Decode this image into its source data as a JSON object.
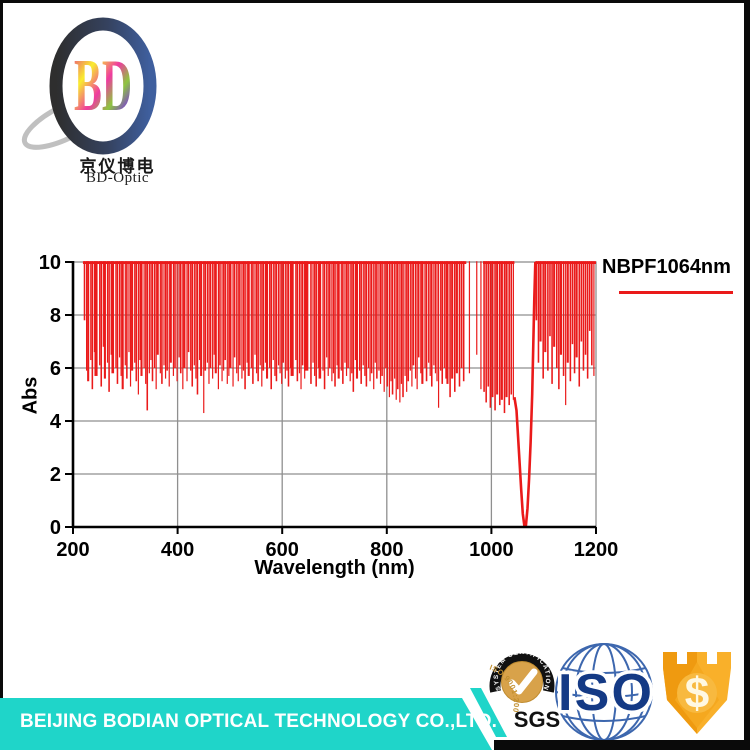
{
  "logo": {
    "monogram": "BD",
    "company_cn": "京仪博电",
    "company_short": "BD-Optic"
  },
  "chart": {
    "legend_label": "NBPF1064nm",
    "ylabel": "Abs",
    "xlabel": "Wavelength (nm)",
    "x_ticks": [
      "200",
      "400",
      "600",
      "800",
      "1000",
      "1200"
    ],
    "y_ticks": [
      "0",
      "2",
      "4",
      "6",
      "8",
      "10"
    ]
  },
  "chart_data": {
    "type": "line",
    "title": "",
    "series_name": "NBPF1064nm",
    "xlabel": "Wavelength (nm)",
    "ylabel": "Abs",
    "xlim": [
      200,
      1200
    ],
    "ylim": [
      0,
      10
    ],
    "x_tick_values": [
      200,
      400,
      600,
      800,
      1000,
      1200
    ],
    "y_tick_values": [
      0,
      2,
      4,
      6,
      8,
      10
    ],
    "grid": true,
    "legend_position": "right-top",
    "line_color": "#ea1a1a",
    "pattern": "Blocking band: absorbance pinned at 10 from ~220-1044 nm and ~1084-1200 nm with dense noisy downward spikes (typical minima 4.3-6.6); sparse region ~950-985 nm; deep smooth transmission notch centered at 1064 nm reaching Abs 0.",
    "notch_center_nm": 1064,
    "baseline_abs": 10,
    "baseline_segments": [
      [
        219,
        952
      ],
      [
        984,
        1044
      ],
      [
        1084,
        1200
      ]
    ],
    "notch_points": [
      [
        1044,
        4.9
      ],
      [
        1048,
        4.4
      ],
      [
        1051,
        3.4
      ],
      [
        1054,
        2.4
      ],
      [
        1057,
        1.4
      ],
      [
        1060,
        0.5
      ],
      [
        1063,
        0.05
      ],
      [
        1066,
        0.05
      ],
      [
        1069,
        0.7
      ],
      [
        1072,
        1.8
      ],
      [
        1075,
        3.2
      ],
      [
        1078,
        5.0
      ],
      [
        1080,
        6.8
      ],
      [
        1082,
        8.6
      ],
      [
        1084,
        10
      ]
    ],
    "spikes": [
      [
        222,
        7.8,
        3
      ],
      [
        226,
        5.9,
        2
      ],
      [
        229,
        5.5,
        4
      ],
      [
        234,
        6.3,
        2
      ],
      [
        237,
        5.2,
        3
      ],
      [
        241,
        6.6,
        2
      ],
      [
        244,
        5.7,
        6
      ],
      [
        251,
        6.1,
        2
      ],
      [
        254,
        5.3,
        3
      ],
      [
        258,
        6.8,
        2
      ],
      [
        261,
        5.6,
        4
      ],
      [
        266,
        6.2,
        2
      ],
      [
        269,
        5.1,
        3
      ],
      [
        273,
        6.5,
        2
      ],
      [
        276,
        5.8,
        5
      ],
      [
        282,
        6.0,
        2
      ],
      [
        285,
        5.4,
        3
      ],
      [
        289,
        6.4,
        2
      ],
      [
        292,
        5.7,
        2
      ],
      [
        295,
        5.2,
        4
      ],
      [
        300,
        6.1,
        2
      ],
      [
        303,
        5.6,
        3
      ],
      [
        307,
        6.6,
        2
      ],
      [
        310,
        5.3,
        2
      ],
      [
        313,
        5.9,
        4
      ],
      [
        318,
        6.2,
        2
      ],
      [
        321,
        5.5,
        3
      ],
      [
        325,
        5.0,
        2
      ],
      [
        328,
        6.3,
        2
      ],
      [
        331,
        5.7,
        4
      ],
      [
        336,
        6.0,
        2
      ],
      [
        339,
        5.4,
        2
      ],
      [
        342,
        4.4,
        3
      ],
      [
        346,
        5.8,
        2
      ],
      [
        349,
        6.3,
        2
      ],
      [
        352,
        5.5,
        3
      ],
      [
        356,
        6.0,
        2
      ],
      [
        359,
        5.2,
        2
      ],
      [
        362,
        6.5,
        4
      ],
      [
        367,
        5.8,
        2
      ],
      [
        370,
        5.4,
        3
      ],
      [
        374,
        6.1,
        2
      ],
      [
        377,
        5.6,
        2
      ],
      [
        380,
        5.9,
        3
      ],
      [
        384,
        5.3,
        2
      ],
      [
        387,
        6.2,
        4
      ],
      [
        392,
        5.7,
        2
      ],
      [
        395,
        6.0,
        3
      ],
      [
        399,
        5.5,
        2
      ],
      [
        403,
        6.4,
        2
      ],
      [
        406,
        5.8,
        3
      ],
      [
        410,
        5.2,
        2
      ],
      [
        413,
        6.0,
        4
      ],
      [
        418,
        5.5,
        2
      ],
      [
        421,
        6.6,
        3
      ],
      [
        425,
        5.9,
        2
      ],
      [
        428,
        5.3,
        3
      ],
      [
        432,
        6.1,
        2
      ],
      [
        435,
        5.6,
        2
      ],
      [
        438,
        5.0,
        3
      ],
      [
        442,
        6.3,
        2
      ],
      [
        445,
        5.7,
        4
      ],
      [
        450,
        4.3,
        2
      ],
      [
        453,
        5.9,
        3
      ],
      [
        457,
        6.2,
        2
      ],
      [
        460,
        5.4,
        2
      ],
      [
        463,
        6.0,
        3
      ],
      [
        467,
        5.6,
        2
      ],
      [
        470,
        6.5,
        2
      ],
      [
        473,
        5.8,
        4
      ],
      [
        478,
        5.2,
        2
      ],
      [
        481,
        6.1,
        3
      ],
      [
        485,
        5.5,
        2
      ],
      [
        488,
        5.9,
        2
      ],
      [
        491,
        6.3,
        3
      ],
      [
        495,
        5.4,
        2
      ],
      [
        498,
        5.7,
        2
      ],
      [
        501,
        6.0,
        4
      ],
      [
        506,
        5.3,
        2
      ],
      [
        509,
        6.4,
        3
      ],
      [
        513,
        5.8,
        2
      ],
      [
        516,
        5.5,
        2
      ],
      [
        519,
        6.1,
        3
      ],
      [
        523,
        5.6,
        2
      ],
      [
        526,
        5.9,
        2
      ],
      [
        529,
        5.2,
        3
      ],
      [
        533,
        6.2,
        2
      ],
      [
        536,
        5.7,
        4
      ],
      [
        541,
        6.0,
        2
      ],
      [
        544,
        5.4,
        3
      ],
      [
        548,
        6.5,
        2
      ],
      [
        551,
        5.8,
        2
      ],
      [
        554,
        5.5,
        3
      ],
      [
        558,
        6.1,
        2
      ],
      [
        561,
        5.3,
        2
      ],
      [
        564,
        5.9,
        3
      ],
      [
        568,
        6.2,
        2
      ],
      [
        571,
        5.6,
        4
      ],
      [
        576,
        6.0,
        2
      ],
      [
        579,
        5.2,
        3
      ],
      [
        583,
        6.3,
        2
      ],
      [
        586,
        5.7,
        2
      ],
      [
        589,
        5.5,
        3
      ],
      [
        593,
        6.1,
        2
      ],
      [
        596,
        5.8,
        2
      ],
      [
        599,
        5.4,
        2
      ],
      [
        602,
        6.2,
        3
      ],
      [
        606,
        5.6,
        2
      ],
      [
        609,
        5.9,
        2
      ],
      [
        612,
        5.3,
        3
      ],
      [
        616,
        6.0,
        2
      ],
      [
        619,
        5.7,
        6
      ],
      [
        626,
        6.3,
        2
      ],
      [
        629,
        5.5,
        3
      ],
      [
        633,
        5.8,
        2
      ],
      [
        636,
        5.2,
        2
      ],
      [
        639,
        6.1,
        3
      ],
      [
        643,
        5.6,
        2
      ],
      [
        646,
        5.9,
        8
      ],
      [
        655,
        5.4,
        3
      ],
      [
        659,
        6.2,
        2
      ],
      [
        662,
        5.7,
        2
      ],
      [
        665,
        5.3,
        3
      ],
      [
        669,
        6.0,
        2
      ],
      [
        672,
        5.6,
        5
      ],
      [
        678,
        5.9,
        2
      ],
      [
        681,
        5.2,
        3
      ],
      [
        685,
        6.4,
        2
      ],
      [
        688,
        5.7,
        2
      ],
      [
        691,
        6.0,
        3
      ],
      [
        695,
        5.5,
        2
      ],
      [
        698,
        5.8,
        2
      ],
      [
        701,
        5.3,
        3
      ],
      [
        705,
        6.1,
        2
      ],
      [
        708,
        5.6,
        4
      ],
      [
        713,
        5.9,
        2
      ],
      [
        716,
        5.4,
        3
      ],
      [
        720,
        6.2,
        2
      ],
      [
        723,
        5.7,
        2
      ],
      [
        726,
        6.0,
        3
      ],
      [
        730,
        5.5,
        2
      ],
      [
        733,
        5.8,
        2
      ],
      [
        736,
        5.1,
        3
      ],
      [
        740,
        6.3,
        2
      ],
      [
        743,
        5.6,
        4
      ],
      [
        748,
        5.9,
        2
      ],
      [
        751,
        5.4,
        3
      ],
      [
        755,
        6.1,
        2
      ],
      [
        758,
        5.7,
        2
      ],
      [
        761,
        5.3,
        3
      ],
      [
        765,
        6.0,
        2
      ],
      [
        768,
        5.5,
        2
      ],
      [
        771,
        5.8,
        3
      ],
      [
        775,
        5.2,
        2
      ],
      [
        778,
        6.2,
        2
      ],
      [
        781,
        5.6,
        3
      ],
      [
        785,
        5.9,
        2
      ],
      [
        788,
        5.4,
        2
      ],
      [
        791,
        5.7,
        3
      ],
      [
        795,
        5.1,
        2
      ],
      [
        798,
        6.0,
        2
      ],
      [
        801,
        5.3,
        3
      ],
      [
        805,
        4.9,
        2
      ],
      [
        808,
        5.5,
        2
      ],
      [
        811,
        5.0,
        3
      ],
      [
        815,
        5.6,
        2
      ],
      [
        818,
        4.8,
        2
      ],
      [
        821,
        5.2,
        3
      ],
      [
        825,
        4.7,
        2
      ],
      [
        828,
        5.4,
        2
      ],
      [
        831,
        4.9,
        3
      ],
      [
        835,
        5.7,
        2
      ],
      [
        838,
        5.1,
        2
      ],
      [
        841,
        5.5,
        3
      ],
      [
        845,
        5.9,
        2
      ],
      [
        848,
        5.3,
        2
      ],
      [
        851,
        6.1,
        3
      ],
      [
        855,
        5.6,
        2
      ],
      [
        858,
        5.2,
        2
      ],
      [
        861,
        6.4,
        3
      ],
      [
        865,
        5.8,
        2
      ],
      [
        868,
        5.4,
        4
      ],
      [
        873,
        6.0,
        2
      ],
      [
        876,
        5.5,
        3
      ],
      [
        880,
        6.2,
        2
      ],
      [
        883,
        5.7,
        2
      ],
      [
        886,
        5.3,
        3
      ],
      [
        890,
        6.1,
        2
      ],
      [
        893,
        5.8,
        2
      ],
      [
        896,
        5.5,
        2
      ],
      [
        899,
        4.5,
        2
      ],
      [
        903,
        5.9,
        2
      ],
      [
        906,
        5.4,
        3
      ],
      [
        910,
        6.0,
        2
      ],
      [
        913,
        5.6,
        2
      ],
      [
        916,
        5.4,
        4
      ],
      [
        921,
        4.9,
        3
      ],
      [
        925,
        5.6,
        4
      ],
      [
        930,
        5.1,
        3
      ],
      [
        934,
        5.8,
        4
      ],
      [
        939,
        5.3,
        3
      ],
      [
        943,
        6.0,
        3
      ],
      [
        947,
        5.5,
        3
      ],
      [
        958,
        5.8,
        2
      ],
      [
        972,
        6.5,
        1.5
      ],
      [
        980,
        5.2,
        2
      ],
      [
        986,
        5.1,
        3
      ],
      [
        990,
        4.7,
        3
      ],
      [
        994,
        5.3,
        3
      ],
      [
        998,
        4.5,
        3
      ],
      [
        1002,
        4.9,
        4
      ],
      [
        1007,
        4.4,
        3
      ],
      [
        1011,
        5.0,
        4
      ],
      [
        1016,
        4.6,
        3
      ],
      [
        1020,
        4.8,
        4
      ],
      [
        1025,
        4.3,
        3
      ],
      [
        1029,
        4.9,
        4
      ],
      [
        1034,
        4.6,
        3
      ],
      [
        1038,
        5.0,
        3
      ],
      [
        1042,
        4.8,
        2
      ],
      [
        1086,
        7.8,
        3
      ],
      [
        1090,
        6.2,
        3
      ],
      [
        1094,
        7.0,
        4
      ],
      [
        1099,
        5.6,
        3
      ],
      [
        1103,
        6.6,
        4
      ],
      [
        1108,
        5.9,
        3
      ],
      [
        1112,
        7.2,
        3
      ],
      [
        1116,
        5.4,
        3
      ],
      [
        1120,
        6.8,
        4
      ],
      [
        1125,
        6.0,
        3
      ],
      [
        1129,
        5.2,
        3
      ],
      [
        1133,
        6.5,
        4
      ],
      [
        1138,
        5.7,
        3
      ],
      [
        1142,
        4.6,
        2
      ],
      [
        1146,
        6.2,
        4
      ],
      [
        1151,
        5.5,
        3
      ],
      [
        1155,
        6.9,
        3
      ],
      [
        1159,
        5.8,
        3
      ],
      [
        1163,
        6.4,
        4
      ],
      [
        1168,
        5.3,
        3
      ],
      [
        1172,
        7.0,
        3
      ],
      [
        1176,
        5.9,
        3
      ],
      [
        1180,
        6.5,
        3
      ],
      [
        1184,
        5.6,
        3
      ],
      [
        1188,
        7.4,
        3
      ],
      [
        1192,
        6.1,
        3
      ],
      [
        1196,
        5.7,
        2
      ]
    ]
  },
  "certifications": {
    "sgs": {
      "arc_text": "SYSTEM CERTIFICATION",
      "curved_text": "ISO 9001:2000",
      "label": "SGS"
    },
    "iso": {
      "label": "ISO"
    },
    "dollar_badge": {
      "symbol": "$"
    }
  },
  "banner": {
    "text": "BEIJING BODIAN OPTICAL TECHNOLOGY CO.,LTD."
  },
  "colors": {
    "chart_red": "#ea1a1a",
    "grid_gray": "#8f8f8f",
    "banner_teal": "#1fd5c9",
    "frame_black": "#0a0a0a",
    "iso_navy": "#143a85",
    "globe_blue": "#3d67ae",
    "sgs_gold": "#d8a24a",
    "badge_orange": "#f6a41c"
  }
}
